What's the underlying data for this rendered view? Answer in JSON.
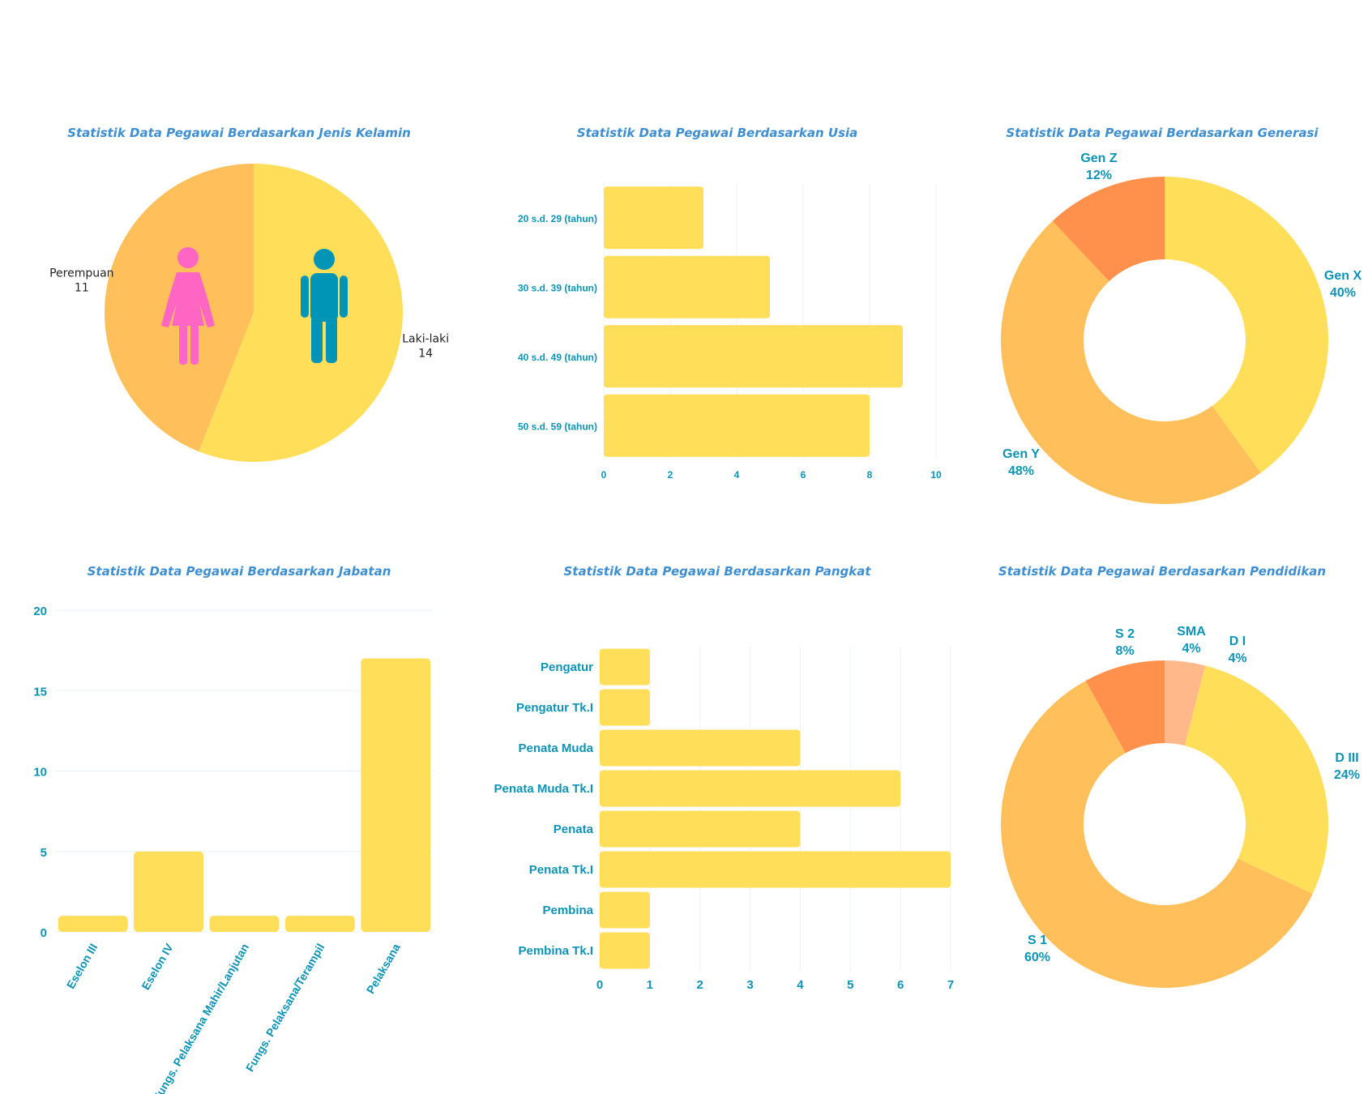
{
  "colors": {
    "yellow": "#ffde59",
    "light_orange": "#ffbf5a",
    "orange": "#ff914d",
    "peach": "#ffb88a",
    "teal_text": "#0e93b5",
    "title_blue": "#3f8fd0",
    "female_icon": "#ff66c4",
    "male_icon": "#0095b6"
  },
  "icons": {
    "female": "female-person-icon",
    "male": "male-person-icon"
  },
  "chart_data": [
    {
      "id": "gender",
      "type": "pie",
      "title": "Statistik Data Pegawai Berdasarkan Jenis Kelamin",
      "slices": [
        {
          "label": "Laki-laki",
          "value": 14,
          "color": "#ffde59"
        },
        {
          "label": "Perempuan",
          "value": 11,
          "color": "#ffbf5a"
        }
      ]
    },
    {
      "id": "age",
      "type": "bar",
      "orientation": "horizontal",
      "title": "Statistik Data Pegawai Berdasarkan Usia",
      "categories": [
        "20 s.d. 29 (tahun)",
        "30 s.d. 39 (tahun)",
        "40 s.d. 49 (tahun)",
        "50 s.d. 59 (tahun)"
      ],
      "values": [
        3,
        5,
        9,
        8
      ],
      "xlim": [
        0,
        10
      ],
      "xticks": [
        "0",
        "2",
        "4",
        "6",
        "8",
        "10"
      ],
      "grid": true
    },
    {
      "id": "generation",
      "type": "pie",
      "donut": true,
      "title": "Statistik Data Pegawai Berdasarkan Generasi",
      "slices": [
        {
          "label": "Gen X",
          "value": 40,
          "pct": "40%",
          "color": "#ffde59"
        },
        {
          "label": "Gen Y",
          "value": 48,
          "pct": "48%",
          "color": "#ffbf5a"
        },
        {
          "label": "Gen Z",
          "value": 12,
          "pct": "12%",
          "color": "#ff914d"
        }
      ]
    },
    {
      "id": "position",
      "type": "bar",
      "orientation": "vertical",
      "title": "Statistik Data Pegawai Berdasarkan Jabatan",
      "categories": [
        "Eselon III",
        "Eselon IV",
        "Fungs. Pelaksana Mahir/Lanjutan",
        "Fungs. Pelaksana/Terampil",
        "Pelaksana"
      ],
      "values": [
        1,
        5,
        1,
        1,
        17
      ],
      "ylim": [
        0,
        20
      ],
      "yticks": [
        "0",
        "5",
        "10",
        "15",
        "20"
      ],
      "grid": true
    },
    {
      "id": "rank",
      "type": "bar",
      "orientation": "horizontal",
      "title": "Statistik Data Pegawai Berdasarkan Pangkat",
      "categories": [
        "Pengatur",
        "Pengatur Tk.I",
        "Penata Muda",
        "Penata Muda Tk.I",
        "Penata",
        "Penata Tk.I",
        "Pembina",
        "Pembina Tk.I"
      ],
      "values": [
        1,
        1,
        4,
        6,
        4,
        7,
        1,
        1
      ],
      "xlim": [
        0,
        7
      ],
      "xticks": [
        "0",
        "1",
        "2",
        "3",
        "4",
        "5",
        "6",
        "7"
      ],
      "grid": true
    },
    {
      "id": "education",
      "type": "pie",
      "donut": true,
      "title": "Statistik Data Pegawai Berdasarkan Pendidikan",
      "slices": [
        {
          "label": "SMA",
          "value": 4,
          "pct": "4%",
          "color": "#ffb88a"
        },
        {
          "label": "D I",
          "value": 4,
          "pct": "4%",
          "color": "#ffde59"
        },
        {
          "label": "D III",
          "value": 24,
          "pct": "24%",
          "color": "#ffde59"
        },
        {
          "label": "S 1",
          "value": 60,
          "pct": "60%",
          "color": "#ffbf5a"
        },
        {
          "label": "S 2",
          "value": 8,
          "pct": "8%",
          "color": "#ff914d"
        }
      ]
    }
  ]
}
